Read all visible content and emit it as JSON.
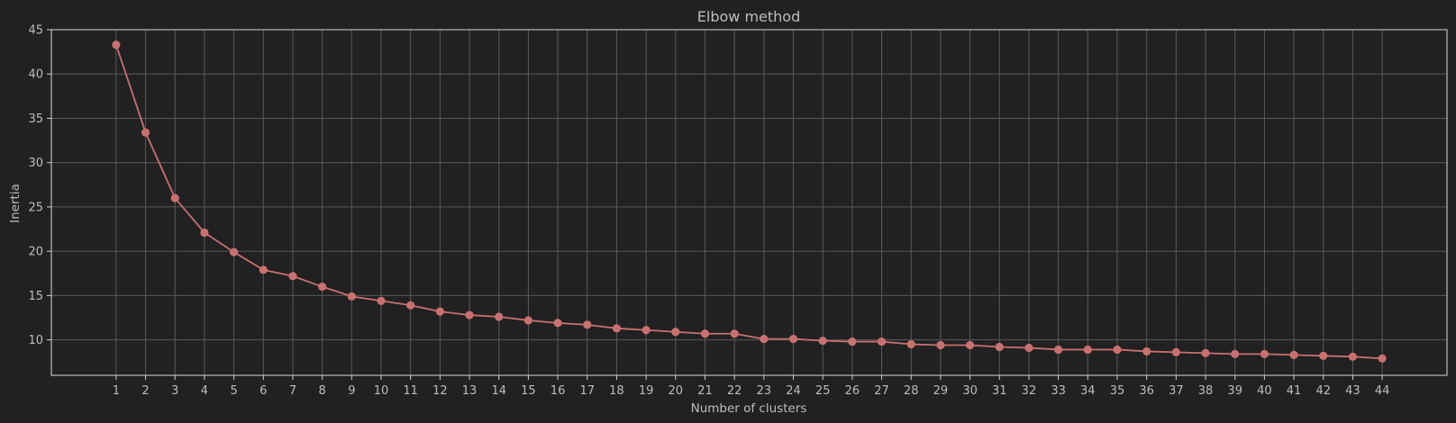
{
  "chart_data": {
    "type": "line",
    "title": "Elbow method",
    "xlabel": "Number of clusters",
    "ylabel": "Inertia",
    "x": [
      1,
      2,
      3,
      4,
      5,
      6,
      7,
      8,
      9,
      10,
      11,
      12,
      13,
      14,
      15,
      16,
      17,
      18,
      19,
      20,
      21,
      22,
      23,
      24,
      25,
      26,
      27,
      28,
      29,
      30,
      31,
      32,
      33,
      34,
      35,
      36,
      37,
      38,
      39,
      40,
      41,
      42,
      43,
      44
    ],
    "series": [
      {
        "name": "Inertia",
        "values": [
          43.3,
          33.4,
          26.0,
          22.1,
          19.9,
          17.9,
          17.2,
          16.0,
          14.9,
          14.4,
          13.9,
          13.2,
          12.8,
          12.6,
          12.2,
          11.9,
          11.7,
          11.3,
          11.1,
          10.9,
          10.7,
          10.7,
          10.1,
          10.1,
          9.9,
          9.8,
          9.8,
          9.5,
          9.4,
          9.4,
          9.2,
          9.1,
          8.9,
          8.9,
          8.9,
          8.7,
          8.6,
          8.5,
          8.4,
          8.4,
          8.3,
          8.2,
          8.1,
          7.9
        ],
        "color": "#c97070"
      }
    ],
    "xlim": [
      -1.2,
      46.2
    ],
    "ylim": [
      6.0,
      45.0
    ],
    "yticks": [
      10,
      15,
      20,
      25,
      30,
      35,
      40,
      45
    ],
    "grid": true,
    "legend": "none"
  },
  "colors": {
    "background": "#212121",
    "text": "#bdbdbd",
    "grid": "#5a5a5a",
    "frame": "#d9d9d9",
    "series": "#c97070"
  }
}
